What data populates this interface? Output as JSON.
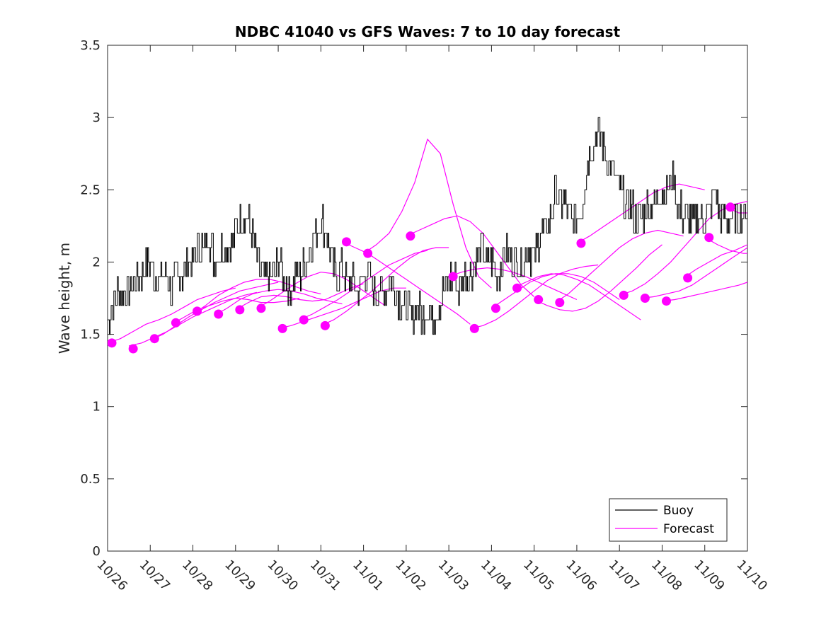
{
  "chart_data": {
    "type": "line",
    "title": "NDBC 41040 vs GFS Waves: 7 to 10 day forecast",
    "xlabel": "",
    "ylabel": "Wave height, m",
    "xlim": [
      0,
      15
    ],
    "ylim": [
      0,
      3.5
    ],
    "x_tick_labels": [
      "10/26",
      "10/27",
      "10/28",
      "10/29",
      "10/30",
      "10/31",
      "11/01",
      "11/02",
      "11/03",
      "11/04",
      "11/05",
      "11/06",
      "11/07",
      "11/08",
      "11/09",
      "11/10"
    ],
    "y_ticks": [
      "0",
      "0.5",
      "1",
      "1.5",
      "2",
      "2.5",
      "3",
      "3.5"
    ],
    "grid": false,
    "legend": {
      "placement": "bottom-right",
      "entries": [
        "Buoy",
        "Forecast"
      ]
    },
    "colors": {
      "buoy": "#000000",
      "forecast": "#ff00ff"
    },
    "series": [
      {
        "name": "Buoy",
        "x_start": 0,
        "x_step": 0.125,
        "values": [
          1.6,
          1.7,
          1.8,
          1.8,
          1.8,
          1.9,
          1.9,
          2.0,
          2.0,
          1.9,
          1.9,
          1.9,
          1.8,
          1.9,
          1.9,
          2.0,
          2.0,
          2.1,
          2.1,
          2.2,
          2.0,
          2.1,
          2.1,
          2.1,
          2.2,
          2.3,
          2.3,
          2.2,
          2.0,
          1.9,
          1.9,
          1.9,
          2.0,
          1.9,
          1.8,
          1.9,
          1.9,
          2.0,
          2.1,
          2.2,
          2.3,
          2.2,
          2.0,
          1.9,
          2.0,
          1.8,
          1.9,
          1.8,
          1.9,
          1.9,
          1.8,
          1.8,
          1.8,
          1.9,
          1.8,
          1.7,
          1.7,
          1.6,
          1.7,
          1.6,
          1.7,
          1.6,
          1.7,
          1.8,
          1.9,
          1.9,
          1.8,
          1.9,
          1.9,
          2.0,
          2.1,
          2.0,
          2.0,
          1.9,
          2.0,
          2.1,
          2.0,
          2.0,
          2.0,
          2.1,
          2.0,
          2.2,
          2.2,
          2.3,
          2.5,
          2.4,
          2.4,
          2.3,
          2.3,
          2.4,
          2.7,
          2.8,
          2.9,
          2.8,
          2.7,
          2.6,
          2.5,
          2.4,
          2.4,
          2.3,
          2.3,
          2.4,
          2.4,
          2.4,
          2.5,
          2.5,
          2.6,
          2.4,
          2.3,
          2.3,
          2.3,
          2.3,
          2.3,
          2.4,
          2.5,
          2.3,
          2.3,
          2.3,
          2.3,
          2.3,
          2.4
        ]
      },
      {
        "name": "Forecast",
        "lines": [
          {
            "x": [
              0,
              0.3,
              0.6,
              0.9,
              1.2,
              1.5,
              1.8,
              2.1,
              2.4,
              2.7,
              3.0
            ],
            "y": [
              1.44,
              1.47,
              1.52,
              1.57,
              1.6,
              1.64,
              1.69,
              1.74,
              1.77,
              1.8,
              1.82
            ]
          },
          {
            "x": [
              0.5,
              0.8,
              1.1,
              1.4,
              1.7,
              2.0,
              2.3,
              2.6,
              2.9,
              3.2,
              3.5
            ],
            "y": [
              1.42,
              1.44,
              1.48,
              1.52,
              1.57,
              1.62,
              1.66,
              1.7,
              1.74,
              1.77,
              1.79
            ]
          },
          {
            "x": [
              1.0,
              1.3,
              1.6,
              1.9,
              2.2,
              2.5,
              2.8,
              3.1,
              3.4,
              3.7,
              4.0
            ],
            "y": [
              1.46,
              1.5,
              1.56,
              1.62,
              1.67,
              1.72,
              1.76,
              1.8,
              1.82,
              1.84,
              1.86
            ]
          },
          {
            "x": [
              1.5,
              1.8,
              2.1,
              2.4,
              2.7,
              3.0,
              3.3,
              3.6,
              3.9,
              4.2,
              4.5
            ],
            "y": [
              1.57,
              1.62,
              1.67,
              1.7,
              1.73,
              1.75,
              1.74,
              1.72,
              1.72,
              1.73,
              1.75
            ]
          },
          {
            "x": [
              2.0,
              2.3,
              2.6,
              2.9,
              3.2,
              3.5,
              3.8,
              4.1,
              4.4,
              4.7,
              5.0
            ],
            "y": [
              1.64,
              1.7,
              1.77,
              1.82,
              1.86,
              1.88,
              1.88,
              1.86,
              1.83,
              1.8,
              1.78
            ]
          },
          {
            "x": [
              2.5,
              2.8,
              3.1,
              3.4,
              3.7,
              4.0,
              4.3,
              4.6,
              4.9,
              5.2,
              5.5
            ],
            "y": [
              1.63,
              1.68,
              1.74,
              1.78,
              1.8,
              1.81,
              1.8,
              1.78,
              1.75,
              1.73,
              1.71
            ]
          },
          {
            "x": [
              3.0,
              3.3,
              3.6,
              3.9,
              4.2,
              4.5,
              4.8,
              5.1,
              5.4,
              5.7,
              6.0
            ],
            "y": [
              1.67,
              1.72,
              1.76,
              1.77,
              1.76,
              1.74,
              1.73,
              1.74,
              1.78,
              1.82,
              1.85
            ]
          },
          {
            "x": [
              3.5,
              3.8,
              4.1,
              4.4,
              4.7,
              5.0,
              5.3,
              5.6,
              5.9,
              6.2,
              6.5
            ],
            "y": [
              1.68,
              1.73,
              1.79,
              1.85,
              1.9,
              1.93,
              1.92,
              1.88,
              1.82,
              1.76,
              1.7
            ]
          },
          {
            "x": [
              4.0,
              4.3,
              4.6,
              4.9,
              5.2,
              5.5,
              5.8,
              6.1,
              6.4,
              6.7,
              7.0
            ],
            "y": [
              1.54,
              1.56,
              1.59,
              1.62,
              1.65,
              1.68,
              1.72,
              1.76,
              1.8,
              1.82,
              1.82
            ]
          },
          {
            "x": [
              4.5,
              4.8,
              5.1,
              5.4,
              5.7,
              6.0,
              6.3,
              6.6,
              6.9,
              7.2,
              7.5
            ],
            "y": [
              1.6,
              1.64,
              1.69,
              1.74,
              1.8,
              1.86,
              1.92,
              1.98,
              2.02,
              2.06,
              2.08
            ]
          },
          {
            "x": [
              5.0,
              5.3,
              5.6,
              5.9,
              6.2,
              6.5,
              6.8,
              7.1,
              7.4,
              7.7,
              8.0
            ],
            "y": [
              1.56,
              1.6,
              1.66,
              1.73,
              1.8,
              1.88,
              1.96,
              2.03,
              2.08,
              2.1,
              2.1
            ]
          },
          {
            "x": [
              5.5,
              5.8,
              6.1,
              6.4,
              6.7,
              7.0,
              7.3,
              7.6,
              7.9,
              8.2,
              8.5
            ],
            "y": [
              2.14,
              2.1,
              2.06,
              2.0,
              1.94,
              1.88,
              1.82,
              1.76,
              1.7,
              1.64,
              1.57
            ]
          },
          {
            "x": [
              6.0,
              6.3,
              6.6,
              6.9,
              7.2,
              7.5,
              7.8,
              8.1,
              8.4,
              8.7,
              9.0
            ],
            "y": [
              2.06,
              2.12,
              2.2,
              2.35,
              2.55,
              2.85,
              2.75,
              2.4,
              2.1,
              1.9,
              1.82
            ]
          },
          {
            "x": [
              7.0,
              7.3,
              7.6,
              7.9,
              8.2,
              8.5,
              8.8,
              9.1,
              9.4,
              9.7,
              10.0
            ],
            "y": [
              2.18,
              2.22,
              2.26,
              2.3,
              2.32,
              2.28,
              2.2,
              2.08,
              1.96,
              1.84,
              1.76
            ]
          },
          {
            "x": [
              8.0,
              8.3,
              8.6,
              8.9,
              9.2,
              9.5,
              9.8,
              10.1,
              10.4,
              10.7,
              11.0
            ],
            "y": [
              1.9,
              1.93,
              1.95,
              1.96,
              1.95,
              1.93,
              1.9,
              1.86,
              1.82,
              1.78,
              1.74
            ]
          },
          {
            "x": [
              8.5,
              8.8,
              9.1,
              9.4,
              9.7,
              10.0,
              10.3,
              10.6,
              10.9,
              11.2,
              11.5
            ],
            "y": [
              1.54,
              1.56,
              1.6,
              1.66,
              1.73,
              1.8,
              1.87,
              1.92,
              1.95,
              1.97,
              1.98
            ]
          },
          {
            "x": [
              9.0,
              9.3,
              9.6,
              9.9,
              10.2,
              10.5,
              10.8,
              11.1,
              11.4,
              11.7,
              12.0
            ],
            "y": [
              1.68,
              1.74,
              1.8,
              1.86,
              1.9,
              1.92,
              1.92,
              1.9,
              1.86,
              1.8,
              1.74
            ]
          },
          {
            "x": [
              9.5,
              9.8,
              10.1,
              10.4,
              10.7,
              11.0,
              11.3,
              11.6,
              11.9,
              12.2,
              12.5
            ],
            "y": [
              1.82,
              1.86,
              1.9,
              1.92,
              1.91,
              1.88,
              1.84,
              1.78,
              1.72,
              1.66,
              1.6
            ]
          },
          {
            "x": [
              10.0,
              10.3,
              10.6,
              10.9,
              11.2,
              11.5,
              11.8,
              12.1,
              12.4,
              12.7,
              13.0
            ],
            "y": [
              1.74,
              1.7,
              1.67,
              1.66,
              1.68,
              1.73,
              1.8,
              1.88,
              1.96,
              2.05,
              2.12
            ]
          },
          {
            "x": [
              10.5,
              10.8,
              11.1,
              11.4,
              11.7,
              12.0,
              12.3,
              12.6,
              12.9,
              13.2,
              13.5
            ],
            "y": [
              1.72,
              1.78,
              1.86,
              1.94,
              2.02,
              2.1,
              2.16,
              2.2,
              2.22,
              2.2,
              2.18
            ]
          },
          {
            "x": [
              11.0,
              11.3,
              11.6,
              11.9,
              12.2,
              12.5,
              12.8,
              13.1,
              13.4,
              13.7,
              14.0
            ],
            "y": [
              2.13,
              2.18,
              2.24,
              2.3,
              2.36,
              2.42,
              2.48,
              2.52,
              2.54,
              2.52,
              2.5
            ]
          },
          {
            "x": [
              12.0,
              12.3,
              12.6,
              12.9,
              13.2,
              13.5,
              13.8,
              14.1,
              14.4,
              14.7,
              15.0
            ],
            "y": [
              1.77,
              1.8,
              1.85,
              1.92,
              2.0,
              2.1,
              2.2,
              2.3,
              2.36,
              2.4,
              2.42
            ]
          },
          {
            "x": [
              12.5,
              12.8,
              13.1,
              13.4,
              13.7,
              14.0,
              14.3,
              14.6,
              14.9,
              15.0
            ],
            "y": [
              1.75,
              1.76,
              1.78,
              1.8,
              1.84,
              1.9,
              1.96,
              2.02,
              2.08,
              2.1
            ]
          },
          {
            "x": [
              13.0,
              13.3,
              13.6,
              13.9,
              14.2,
              14.5,
              14.8,
              15.0
            ],
            "y": [
              1.73,
              1.74,
              1.76,
              1.78,
              1.8,
              1.82,
              1.84,
              1.86
            ]
          },
          {
            "x": [
              13.5,
              13.8,
              14.1,
              14.4,
              14.7,
              15.0
            ],
            "y": [
              1.89,
              1.95,
              2.0,
              2.05,
              2.08,
              2.12
            ]
          },
          {
            "x": [
              14.0,
              14.3,
              14.6,
              14.9,
              15.0
            ],
            "y": [
              2.17,
              2.12,
              2.08,
              2.06,
              2.06
            ]
          },
          {
            "x": [
              14.5,
              14.8,
              15.0
            ],
            "y": [
              2.38,
              2.34,
              2.34
            ]
          }
        ],
        "markers": {
          "x": [
            0.1,
            0.6,
            1.1,
            1.6,
            2.1,
            2.6,
            3.1,
            3.6,
            4.1,
            4.6,
            5.1,
            5.6,
            6.1,
            7.1,
            8.1,
            8.6,
            9.1,
            9.6,
            10.1,
            10.6,
            11.1,
            12.1,
            12.6,
            13.1,
            13.6,
            14.1,
            14.6
          ],
          "y": [
            1.44,
            1.4,
            1.47,
            1.58,
            1.66,
            1.64,
            1.67,
            1.68,
            1.54,
            1.6,
            1.56,
            2.14,
            2.06,
            2.18,
            1.9,
            1.54,
            1.68,
            1.82,
            1.74,
            1.72,
            2.13,
            1.77,
            1.75,
            1.73,
            1.89,
            2.17,
            2.38
          ]
        }
      }
    ]
  }
}
